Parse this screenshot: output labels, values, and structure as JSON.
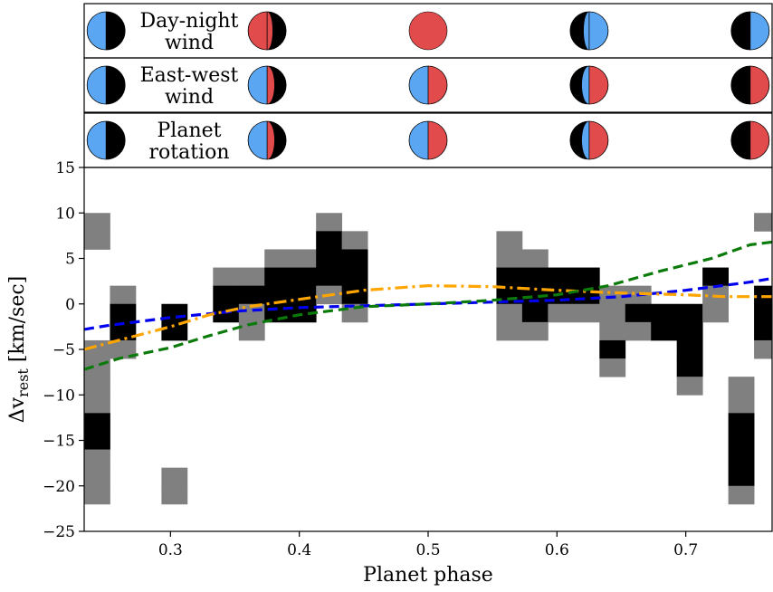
{
  "panels": [
    {
      "label": [
        "Day-night",
        "wind"
      ],
      "icons": [
        {
          "phase_label": "0.25",
          "type": "half",
          "left": "#5aa6f2",
          "right": "#000000"
        },
        {
          "phase_label": "0.375",
          "type": "crescent_red_left",
          "left": "#e24b4b",
          "right": "#000000"
        },
        {
          "phase_label": "0.5",
          "type": "full",
          "left": "#e24b4b",
          "right": "#e24b4b"
        },
        {
          "phase_label": "0.625",
          "type": "crescent_blue_right",
          "left": "#000000",
          "right": "#5aa6f2"
        },
        {
          "phase_label": "0.75",
          "type": "half",
          "left": "#000000",
          "right": "#5aa6f2"
        }
      ]
    },
    {
      "label": [
        "East-west",
        "wind"
      ],
      "icons": [
        {
          "phase_label": "0.25",
          "type": "half",
          "left": "#5aa6f2",
          "right": "#000000"
        },
        {
          "phase_label": "0.375",
          "type": "split_crescent",
          "left": "#5aa6f2",
          "right": "#e24b4b"
        },
        {
          "phase_label": "0.5",
          "type": "half",
          "left": "#5aa6f2",
          "right": "#e24b4b"
        },
        {
          "phase_label": "0.625",
          "type": "split_crescent_r",
          "left": "#5aa6f2",
          "right": "#e24b4b"
        },
        {
          "phase_label": "0.75",
          "type": "half",
          "left": "#000000",
          "right": "#e24b4b"
        }
      ]
    },
    {
      "label": [
        "Planet",
        "rotation"
      ],
      "icons": [
        {
          "phase_label": "0.25",
          "type": "half",
          "left": "#5aa6f2",
          "right": "#000000"
        },
        {
          "phase_label": "0.375",
          "type": "split_crescent",
          "left": "#5aa6f2",
          "right": "#e24b4b"
        },
        {
          "phase_label": "0.5",
          "type": "half",
          "left": "#5aa6f2",
          "right": "#e24b4b"
        },
        {
          "phase_label": "0.625",
          "type": "split_crescent_r",
          "left": "#5aa6f2",
          "right": "#e24b4b"
        },
        {
          "phase_label": "0.75",
          "type": "half",
          "left": "#000000",
          "right": "#e24b4b"
        }
      ]
    }
  ],
  "chart_data": {
    "type": "heatmap",
    "xlabel": "Planet phase",
    "ylabel_main": "Δv",
    "ylabel_sub": "rest",
    "ylabel_unit": " [km/sec]",
    "xlim": [
      0.233,
      0.767
    ],
    "ylim": [
      -25,
      15
    ],
    "xticks": [
      0.3,
      0.4,
      0.5,
      0.6,
      0.7
    ],
    "xtick_labels": [
      "0.3",
      "0.4",
      "0.5",
      "0.6",
      "0.7"
    ],
    "yticks": [
      -25,
      -20,
      -15,
      -10,
      -5,
      0,
      5,
      10,
      15
    ],
    "ytick_labels": [
      "−25",
      "−20",
      "−15",
      "−10",
      "−5",
      "0",
      "5",
      "10",
      "15"
    ],
    "grid": false,
    "bin_width": 0.02,
    "bin_height": 2,
    "cells": [
      {
        "x": 0.243,
        "y": 9,
        "level": "gray"
      },
      {
        "x": 0.243,
        "y": 7,
        "level": "gray"
      },
      {
        "x": 0.243,
        "y": -5,
        "level": "gray"
      },
      {
        "x": 0.243,
        "y": -7,
        "level": "gray"
      },
      {
        "x": 0.243,
        "y": -9,
        "level": "gray"
      },
      {
        "x": 0.243,
        "y": -11,
        "level": "gray"
      },
      {
        "x": 0.243,
        "y": -13,
        "level": "black"
      },
      {
        "x": 0.243,
        "y": -15,
        "level": "black"
      },
      {
        "x": 0.243,
        "y": -17,
        "level": "gray"
      },
      {
        "x": 0.243,
        "y": -19,
        "level": "gray"
      },
      {
        "x": 0.243,
        "y": -21,
        "level": "gray"
      },
      {
        "x": 0.263,
        "y": 1,
        "level": "gray"
      },
      {
        "x": 0.263,
        "y": -1,
        "level": "black"
      },
      {
        "x": 0.263,
        "y": -3,
        "level": "black"
      },
      {
        "x": 0.263,
        "y": -5,
        "level": "gray"
      },
      {
        "x": 0.303,
        "y": -1,
        "level": "black"
      },
      {
        "x": 0.303,
        "y": -3,
        "level": "black"
      },
      {
        "x": 0.303,
        "y": -19,
        "level": "gray"
      },
      {
        "x": 0.303,
        "y": -21,
        "level": "gray"
      },
      {
        "x": 0.343,
        "y": 3,
        "level": "gray"
      },
      {
        "x": 0.343,
        "y": 1,
        "level": "black"
      },
      {
        "x": 0.343,
        "y": -1,
        "level": "black"
      },
      {
        "x": 0.363,
        "y": 3,
        "level": "gray"
      },
      {
        "x": 0.363,
        "y": 1,
        "level": "black"
      },
      {
        "x": 0.363,
        "y": -1,
        "level": "gray"
      },
      {
        "x": 0.363,
        "y": -3,
        "level": "gray"
      },
      {
        "x": 0.383,
        "y": 5,
        "level": "gray"
      },
      {
        "x": 0.383,
        "y": 3,
        "level": "black"
      },
      {
        "x": 0.383,
        "y": 1,
        "level": "black"
      },
      {
        "x": 0.383,
        "y": -1,
        "level": "black"
      },
      {
        "x": 0.403,
        "y": 5,
        "level": "gray"
      },
      {
        "x": 0.403,
        "y": 3,
        "level": "black"
      },
      {
        "x": 0.403,
        "y": 1,
        "level": "black"
      },
      {
        "x": 0.403,
        "y": -1,
        "level": "black"
      },
      {
        "x": 0.423,
        "y": 9,
        "level": "gray"
      },
      {
        "x": 0.423,
        "y": 7,
        "level": "black"
      },
      {
        "x": 0.423,
        "y": 5,
        "level": "black"
      },
      {
        "x": 0.423,
        "y": 3,
        "level": "black"
      },
      {
        "x": 0.423,
        "y": 1,
        "level": "gray"
      },
      {
        "x": 0.443,
        "y": 7,
        "level": "gray"
      },
      {
        "x": 0.443,
        "y": 5,
        "level": "black"
      },
      {
        "x": 0.443,
        "y": 3,
        "level": "black"
      },
      {
        "x": 0.443,
        "y": 1,
        "level": "black"
      },
      {
        "x": 0.443,
        "y": -1,
        "level": "gray"
      },
      {
        "x": 0.563,
        "y": 7,
        "level": "gray"
      },
      {
        "x": 0.563,
        "y": 5,
        "level": "gray"
      },
      {
        "x": 0.563,
        "y": 3,
        "level": "black"
      },
      {
        "x": 0.563,
        "y": 1,
        "level": "black"
      },
      {
        "x": 0.563,
        "y": -1,
        "level": "gray"
      },
      {
        "x": 0.563,
        "y": -3,
        "level": "gray"
      },
      {
        "x": 0.583,
        "y": 5,
        "level": "gray"
      },
      {
        "x": 0.583,
        "y": 3,
        "level": "black"
      },
      {
        "x": 0.583,
        "y": 1,
        "level": "black"
      },
      {
        "x": 0.583,
        "y": -1,
        "level": "black"
      },
      {
        "x": 0.583,
        "y": -3,
        "level": "gray"
      },
      {
        "x": 0.603,
        "y": 3,
        "level": "black"
      },
      {
        "x": 0.603,
        "y": 1,
        "level": "black"
      },
      {
        "x": 0.603,
        "y": -1,
        "level": "gray"
      },
      {
        "x": 0.623,
        "y": 3,
        "level": "black"
      },
      {
        "x": 0.623,
        "y": 1,
        "level": "black"
      },
      {
        "x": 0.623,
        "y": -1,
        "level": "gray"
      },
      {
        "x": 0.643,
        "y": 1,
        "level": "gray"
      },
      {
        "x": 0.643,
        "y": -1,
        "level": "gray"
      },
      {
        "x": 0.643,
        "y": -3,
        "level": "gray"
      },
      {
        "x": 0.643,
        "y": -5,
        "level": "black"
      },
      {
        "x": 0.643,
        "y": -7,
        "level": "gray"
      },
      {
        "x": 0.663,
        "y": 1,
        "level": "gray"
      },
      {
        "x": 0.663,
        "y": -1,
        "level": "black"
      },
      {
        "x": 0.663,
        "y": -3,
        "level": "gray"
      },
      {
        "x": 0.683,
        "y": -1,
        "level": "black"
      },
      {
        "x": 0.683,
        "y": -3,
        "level": "black"
      },
      {
        "x": 0.703,
        "y": -1,
        "level": "black"
      },
      {
        "x": 0.703,
        "y": -3,
        "level": "black"
      },
      {
        "x": 0.703,
        "y": -5,
        "level": "black"
      },
      {
        "x": 0.703,
        "y": -7,
        "level": "black"
      },
      {
        "x": 0.703,
        "y": -9,
        "level": "gray"
      },
      {
        "x": 0.723,
        "y": 3,
        "level": "black"
      },
      {
        "x": 0.723,
        "y": 1,
        "level": "gray"
      },
      {
        "x": 0.723,
        "y": -1,
        "level": "gray"
      },
      {
        "x": 0.743,
        "y": -9,
        "level": "gray"
      },
      {
        "x": 0.743,
        "y": -11,
        "level": "gray"
      },
      {
        "x": 0.743,
        "y": -13,
        "level": "black"
      },
      {
        "x": 0.743,
        "y": -15,
        "level": "black"
      },
      {
        "x": 0.743,
        "y": -17,
        "level": "black"
      },
      {
        "x": 0.743,
        "y": -19,
        "level": "black"
      },
      {
        "x": 0.743,
        "y": -21,
        "level": "gray"
      },
      {
        "x": 0.763,
        "y": 9,
        "level": "gray"
      },
      {
        "x": 0.763,
        "y": 1,
        "level": "black"
      },
      {
        "x": 0.763,
        "y": -1,
        "level": "black"
      },
      {
        "x": 0.763,
        "y": -3,
        "level": "black"
      },
      {
        "x": 0.763,
        "y": -5,
        "level": "gray"
      }
    ],
    "colors": {
      "black": "#000000",
      "gray": "#808080"
    },
    "series": [
      {
        "color": "#0000ee",
        "style": "dashed",
        "x": [
          0.233,
          0.25,
          0.3,
          0.35,
          0.4,
          0.45,
          0.5,
          0.55,
          0.6,
          0.65,
          0.7,
          0.75,
          0.767
        ],
        "y": [
          -2.8,
          -2.4,
          -1.5,
          -0.8,
          -0.4,
          -0.2,
          0.0,
          0.2,
          0.4,
          0.8,
          1.5,
          2.4,
          2.8
        ]
      },
      {
        "color": "#ffa500",
        "style": "dashdot",
        "x": [
          0.233,
          0.26,
          0.3,
          0.33,
          0.36,
          0.4,
          0.45,
          0.5,
          0.55,
          0.6,
          0.65,
          0.7,
          0.73,
          0.767
        ],
        "y": [
          -5.0,
          -4.0,
          -2.5,
          -1.2,
          -0.3,
          0.5,
          1.5,
          2.0,
          1.9,
          1.5,
          1.2,
          1.0,
          0.8,
          0.8
        ]
      },
      {
        "color": "#0a7a0a",
        "style": "dashed",
        "x": [
          0.233,
          0.26,
          0.3,
          0.33,
          0.36,
          0.4,
          0.45,
          0.5,
          0.55,
          0.6,
          0.64,
          0.68,
          0.72,
          0.75,
          0.767
        ],
        "y": [
          -7.2,
          -6.0,
          -4.8,
          -3.5,
          -2.3,
          -1.2,
          -0.3,
          0.0,
          0.4,
          1.0,
          2.0,
          3.6,
          5.0,
          6.5,
          6.8
        ]
      }
    ]
  }
}
